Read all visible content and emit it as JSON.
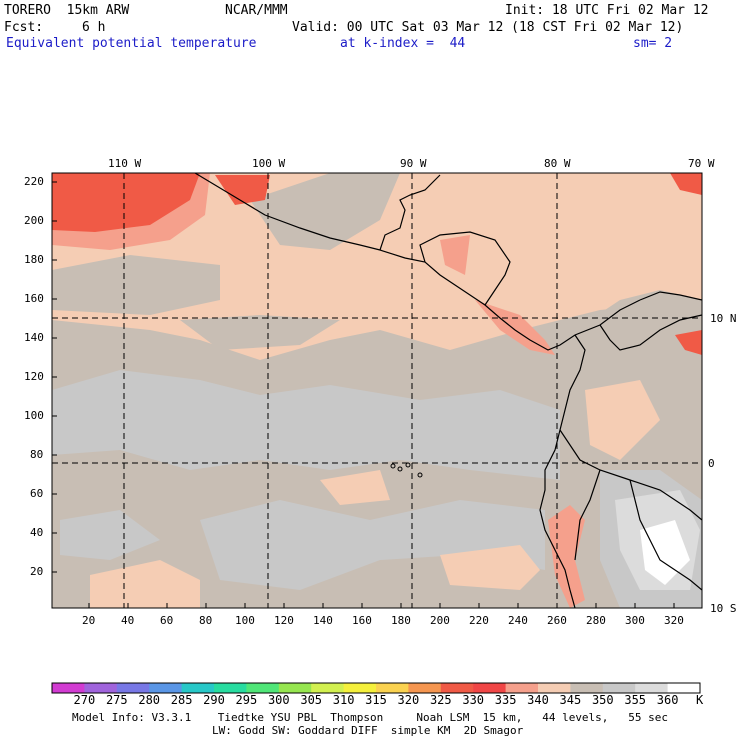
{
  "header": {
    "model": "TORERO  15km ARW",
    "org": "NCAR/MMM",
    "init": "Init: 18 UTC Fri 02 Mar 12",
    "fcst_label": "Fcst:",
    "fcst_value": "6 h",
    "valid": "Valid: 00 UTC Sat 03 Mar 12 (18 CST Fri 02 Mar 12)",
    "field": "Equivalent potential temperature",
    "level": "at k-index =  44",
    "smoothing": "sm= 2"
  },
  "map": {
    "lon_labels": [
      "110 W",
      "100 W",
      "90 W",
      "80 W",
      "70 W"
    ],
    "lat_labels": [
      "10 N",
      "0",
      "10 S"
    ],
    "y_ticks": [
      "220",
      "200",
      "180",
      "160",
      "140",
      "120",
      "100",
      "80",
      "60",
      "40",
      "20"
    ],
    "x_ticks": [
      "20",
      "40",
      "60",
      "80",
      "100",
      "120",
      "140",
      "160",
      "180",
      "200",
      "220",
      "240",
      "260",
      "280",
      "300",
      "320"
    ]
  },
  "colorbar": {
    "labels": [
      "270",
      "275",
      "280",
      "285",
      "290",
      "295",
      "300",
      "305",
      "310",
      "315",
      "320",
      "325",
      "330",
      "335",
      "340",
      "345",
      "350",
      "355",
      "360"
    ],
    "unit": "K",
    "colors": [
      "#d23cd2",
      "#a064dc",
      "#7878e6",
      "#5a96e6",
      "#28c8c8",
      "#28dca0",
      "#50e678",
      "#96e650",
      "#d2f050",
      "#f5f03c",
      "#fad250",
      "#f59650",
      "#f05a46",
      "#f04646",
      "#f5a08c",
      "#f5cdb4",
      "#c8beb4",
      "#c8c8c8",
      "#dcdcdc",
      "#ffffff"
    ]
  },
  "footer": {
    "line1": "Model Info: V3.3.1    Tiedtke YSU PBL  Thompson     Noah LSM  15 km,   44 levels,   55 sec",
    "line2": "LW: Godd SW: Goddard DIFF  simple KM  2D Smagor"
  }
}
